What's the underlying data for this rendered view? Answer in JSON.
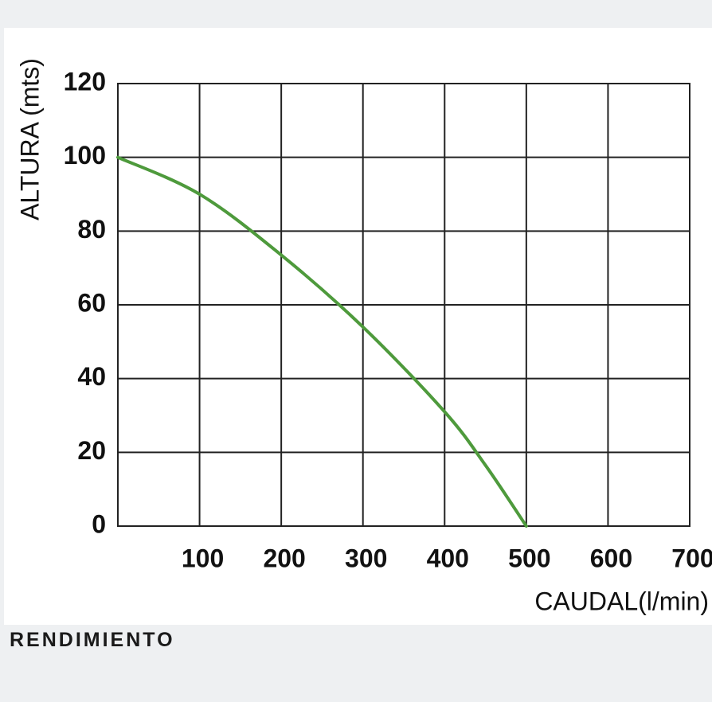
{
  "chart_data": {
    "type": "line",
    "ylabel": "ALTURA (mts)",
    "xlabel": "CAUDAL(l/min)",
    "x": [
      0,
      100,
      200,
      300,
      400,
      450,
      500
    ],
    "series": [
      {
        "name": "Rendimiento",
        "color": "#4e9a3c",
        "values": [
          100,
          90,
          73.5,
          54,
          31,
          16.5,
          0
        ]
      }
    ],
    "xlim": [
      0,
      700
    ],
    "ylim": [
      0,
      120
    ],
    "xticks": [
      100,
      200,
      300,
      400,
      500,
      600,
      700
    ],
    "yticks": [
      0,
      20,
      40,
      60,
      80,
      100,
      120
    ],
    "grid": true
  },
  "caption": "RENDIMIENTO"
}
